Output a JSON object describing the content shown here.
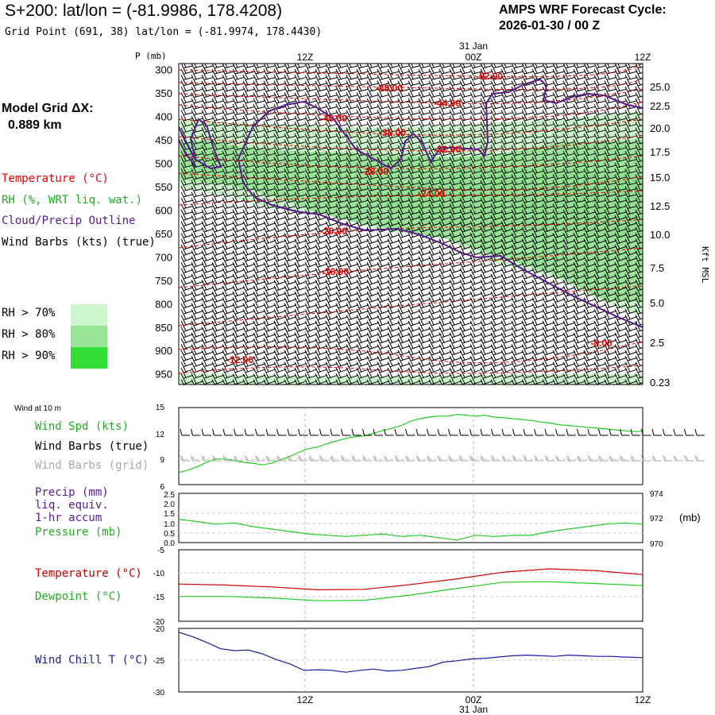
{
  "header": {
    "title": "S+200:  lat/lon = (-81.9986, 178.4208)",
    "subtitle": "Grid Point (691, 38) lat/lon = (-81.9974, 178.4430)",
    "cycle_line1": "AMPS WRF Forecast Cycle:",
    "cycle_line2": "2026-01-30 / 00  Z",
    "grid_line1": "Model Grid ΔX:",
    "grid_line2": "0.889 km"
  },
  "legend": {
    "temperature": "Temperature (°C)",
    "rh": "RH (%, WRT liq. wat.)",
    "cloud": "Cloud/Precip Outline",
    "wind_barbs": "Wind Barbs (kts) (true)",
    "rh70": "RH > 70%",
    "rh80": "RH > 80%",
    "rh90": "RH > 90%"
  },
  "colors": {
    "temp": "#ee0000",
    "cloud": "#5a1a8c",
    "rh70": "#ccf7cc",
    "rh80": "#98e598",
    "rh90": "#33dd33",
    "green_line": "#22cc22",
    "wind_chill": "#1a1aa0",
    "grey": "#aaaaaa"
  },
  "time_axis": {
    "top_labels": [
      "12Z",
      "00Z",
      "12Z"
    ],
    "date_top": "31 Jan",
    "bottom_labels": [
      "12Z",
      "00Z",
      "12Z"
    ],
    "date_bottom": "31 Jan"
  },
  "chart_data": [
    {
      "type": "line",
      "title": "Vertical time section",
      "ylabel": "P (mb)",
      "y2label": "Kft MSL",
      "pressure_ticks": [
        300,
        350,
        400,
        450,
        500,
        550,
        600,
        650,
        700,
        750,
        800,
        850,
        900,
        950
      ],
      "kft_ticks": [
        "25.0",
        "22.5",
        "20.0",
        "17.5",
        "15.0",
        "12.5",
        "10.0",
        "7.5",
        "5.0",
        "2.5",
        "0.23"
      ],
      "temperature_labels": [
        "-52.00",
        "-48.00",
        "-44.00",
        "-40.00",
        "-36.00",
        "-32.00",
        "-28.00",
        "-24.00",
        "-20.00",
        "-16.00",
        "-12.00",
        "-8.00"
      ]
    },
    {
      "type": "line",
      "header": "Wind at 10 m",
      "labels": [
        "Wind Spd (kts)",
        "Wind Barbs (true)",
        "Wind Barbs (grid)"
      ],
      "y_ticks": [
        "15",
        "12",
        "9",
        "6"
      ],
      "ylim": [
        6,
        15
      ],
      "x": [
        0,
        2,
        4,
        6,
        8,
        10,
        12,
        14,
        16,
        18,
        20,
        22,
        24,
        26,
        28,
        30,
        32,
        34,
        36,
        38,
        40,
        42,
        44,
        46,
        48,
        50,
        52,
        54,
        56,
        58,
        60,
        62,
        64,
        66,
        68,
        70,
        72,
        74,
        76,
        78,
        80,
        82,
        84,
        86,
        88,
        90,
        92,
        94,
        96,
        98,
        100
      ],
      "wind_speed": [
        7.4,
        7.7,
        8.1,
        8.6,
        9.0,
        9.0,
        8.8,
        8.6,
        8.5,
        8.3,
        8.5,
        8.9,
        9.3,
        9.8,
        10.2,
        10.4,
        10.8,
        11.1,
        11.4,
        11.6,
        11.7,
        12.0,
        12.3,
        12.6,
        12.9,
        13.4,
        13.7,
        13.9,
        14.0,
        14.0,
        14.2,
        14.1,
        14.0,
        14.1,
        13.9,
        13.8,
        13.7,
        13.6,
        13.5,
        13.3,
        13.2,
        13.0,
        12.9,
        12.8,
        12.7,
        12.6,
        12.5,
        12.4,
        12.3,
        12.2,
        12.2
      ]
    },
    {
      "type": "line",
      "labels": [
        "Precip (mm)",
        "liq. equiv.",
        "1-hr accum",
        "Pressure (mb)"
      ],
      "precip_ticks": [
        "2.5",
        "2.0",
        "1.5",
        "1.0",
        "0.5",
        "0.0"
      ],
      "pressure_ticks": [
        "974",
        "972",
        "970"
      ],
      "pressure_unit": "(mb)",
      "ylim": [
        970,
        974
      ],
      "x": [
        0,
        4,
        8,
        12,
        16,
        20,
        24,
        28,
        32,
        36,
        40,
        44,
        48,
        52,
        56,
        60,
        64,
        68,
        72,
        76,
        80,
        84,
        88,
        92,
        96,
        100
      ],
      "pressure": [
        971.9,
        971.7,
        971.5,
        971.6,
        971.3,
        971.1,
        970.9,
        970.7,
        970.6,
        970.5,
        970.6,
        970.7,
        970.5,
        970.6,
        970.4,
        970.2,
        970.6,
        970.5,
        970.6,
        970.6,
        970.9,
        971.1,
        971.3,
        971.5,
        971.6,
        971.5
      ]
    },
    {
      "type": "line",
      "labels": [
        "Temperature (°C)",
        "Dewpoint (°C)"
      ],
      "y_ticks": [
        "-5",
        "-10",
        "-15",
        "-20"
      ],
      "ylim": [
        -20,
        -5
      ],
      "x": [
        0,
        10,
        20,
        30,
        40,
        50,
        60,
        70,
        80,
        90,
        100
      ],
      "temperature": [
        -12.2,
        -12.4,
        -12.8,
        -13.4,
        -13.3,
        -12.3,
        -11.1,
        -9.7,
        -9.0,
        -9.4,
        -10.2
      ],
      "dewpoint": [
        -14.8,
        -14.8,
        -15.1,
        -15.7,
        -15.6,
        -14.5,
        -13.1,
        -11.8,
        -11.7,
        -12.1,
        -12.5
      ]
    },
    {
      "type": "line",
      "labels": [
        "Wind Chill T (°C)"
      ],
      "y_ticks": [
        "-20",
        "-25",
        "-30"
      ],
      "ylim": [
        -30,
        -20
      ],
      "x": [
        0,
        3,
        6,
        9,
        12,
        15,
        18,
        21,
        24,
        27,
        30,
        33,
        36,
        39,
        42,
        45,
        48,
        51,
        54,
        57,
        60,
        63,
        66,
        69,
        72,
        75,
        78,
        81,
        84,
        87,
        90,
        93,
        96,
        100
      ],
      "wind_chill": [
        -20.6,
        -21.3,
        -22.2,
        -23.2,
        -23.5,
        -23.4,
        -24.0,
        -24.9,
        -25.6,
        -26.6,
        -26.5,
        -26.6,
        -26.9,
        -26.6,
        -26.4,
        -26.7,
        -26.6,
        -26.3,
        -26.0,
        -25.3,
        -25.1,
        -24.8,
        -24.7,
        -24.5,
        -24.3,
        -24.2,
        -24.3,
        -24.4,
        -24.2,
        -24.3,
        -24.4,
        -24.4,
        -24.5,
        -24.6
      ]
    }
  ]
}
